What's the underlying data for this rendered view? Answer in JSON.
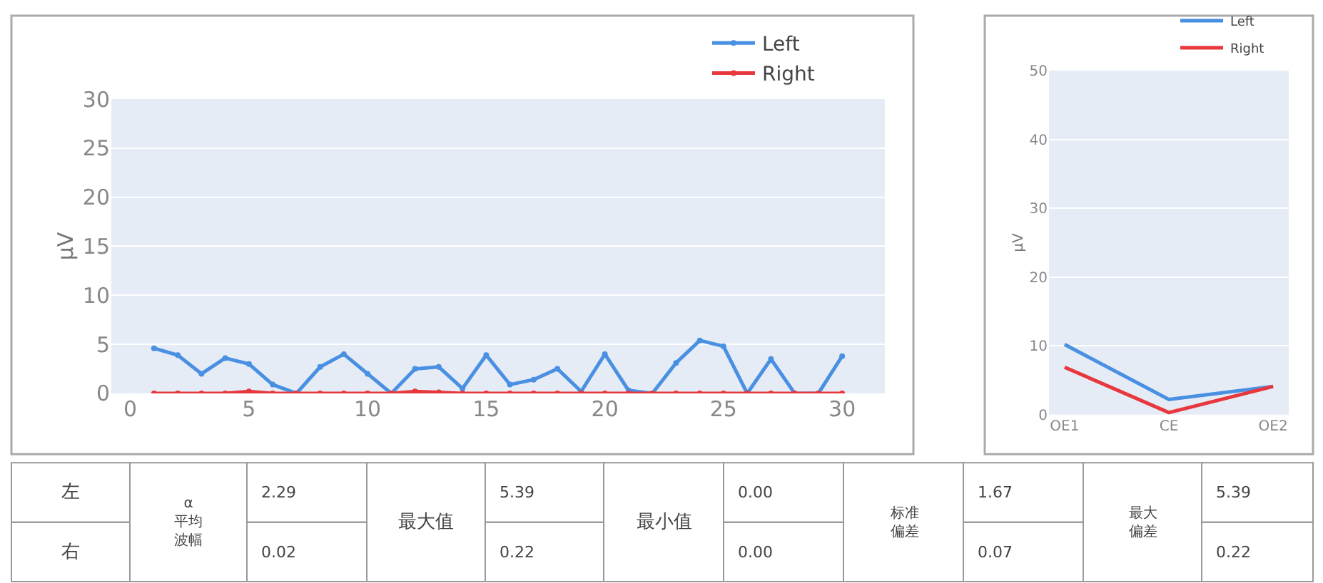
{
  "chart_data": [
    {
      "type": "line",
      "ylabel": "μV",
      "x": [
        1,
        2,
        3,
        4,
        5,
        6,
        7,
        8,
        9,
        10,
        11,
        12,
        13,
        14,
        15,
        16,
        17,
        18,
        19,
        20,
        21,
        22,
        23,
        24,
        25,
        26,
        27,
        28,
        29,
        30
      ],
      "xlim": [
        -0.8,
        31.8
      ],
      "xticks": [
        0,
        5,
        10,
        15,
        20,
        25,
        30
      ],
      "ylim": [
        0,
        30
      ],
      "yticks": [
        0,
        5,
        10,
        15,
        20,
        25,
        30
      ],
      "grid": "y",
      "legend": "top right",
      "marker": "circle",
      "series": [
        {
          "name": "Left",
          "color": "#4a90e2",
          "values": [
            4.6,
            3.9,
            2.0,
            3.6,
            3.0,
            0.9,
            0,
            2.7,
            4.0,
            2.0,
            0,
            2.5,
            2.7,
            0.5,
            3.9,
            0.9,
            1.4,
            2.5,
            0.2,
            4.0,
            0.3,
            0,
            3.1,
            5.4,
            4.8,
            0,
            3.5,
            0,
            0,
            3.8
          ]
        },
        {
          "name": "Right",
          "color": "#e8383d",
          "values": [
            0,
            0,
            0,
            0,
            0.2,
            0,
            0,
            0,
            0,
            0,
            0,
            0.2,
            0.1,
            0,
            0,
            0,
            0,
            0,
            0,
            0,
            0,
            0,
            0,
            0,
            0,
            0,
            0,
            0,
            0,
            0
          ]
        }
      ]
    },
    {
      "type": "line",
      "ylabel": "μV",
      "categories": [
        "OE1",
        "CE",
        "OE2"
      ],
      "ylim": [
        0,
        50
      ],
      "yticks": [
        0,
        10,
        20,
        30,
        40,
        50
      ],
      "grid": "y",
      "legend": "top right",
      "series": [
        {
          "name": "Left",
          "color": "#4a90e2",
          "values": [
            10.2,
            2.2,
            4.1
          ]
        },
        {
          "name": "Right",
          "color": "#e8383d",
          "values": [
            6.9,
            0.3,
            4.1
          ]
        }
      ]
    },
    {
      "type": "other",
      "annotations": [
        "左",
        "α平均波幅",
        "2.29",
        "最大值",
        "5.39",
        "最小值",
        "0.00",
        "标准偏差",
        "1.67",
        "最大偏差",
        "5.39",
        "右",
        "0.02",
        "0.22",
        "0.00",
        "0.07",
        "0.22"
      ]
    }
  ]
}
